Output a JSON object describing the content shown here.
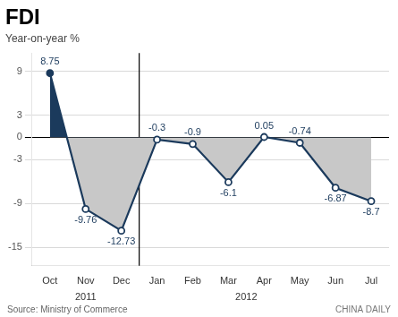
{
  "chart_data": {
    "type": "line",
    "title": "FDI",
    "subtitle": "Year-on-year %",
    "categories": [
      "Oct",
      "Nov",
      "Dec",
      "Jan",
      "Feb",
      "Mar",
      "Apr",
      "May",
      "Jun",
      "Jul"
    ],
    "values": [
      8.75,
      -9.76,
      -12.73,
      -0.3,
      -0.9,
      -6.1,
      0.05,
      -0.74,
      -6.87,
      -8.7
    ],
    "color": "#1b3a5c",
    "ylim": [
      -17.5,
      11.5
    ],
    "yticks": [
      -15,
      -9,
      -3,
      0,
      3,
      9
    ],
    "grid": true,
    "data_labels": true,
    "annotations": [
      {
        "text": "2011",
        "x": 1.0
      },
      {
        "text": "2012",
        "x": 5.5
      },
      {
        "type": "line",
        "x": 2.5
      }
    ],
    "source": "Source: Ministry of Commerce",
    "credit": "CHINA DAILY"
  }
}
